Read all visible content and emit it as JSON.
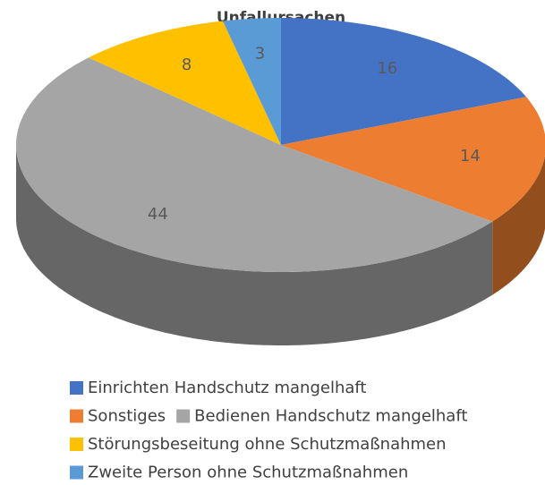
{
  "chart_data": {
    "type": "pie",
    "title": "Unfallursachen",
    "categories": [
      "Einrichten Handschutz mangelhaft",
      "Sonstiges",
      "Bedienen Handschutz mangelhaft",
      "Störungsbeseitung ohne Schutzmaßnahmen",
      "Zweite Person ohne Schutzmaßnahmen"
    ],
    "values": [
      16,
      14,
      44,
      8,
      3
    ],
    "colors": [
      "#4472c4",
      "#ed7d31",
      "#a5a5a5",
      "#ffc000",
      "#5b9bd5"
    ],
    "legend": "bottom"
  }
}
